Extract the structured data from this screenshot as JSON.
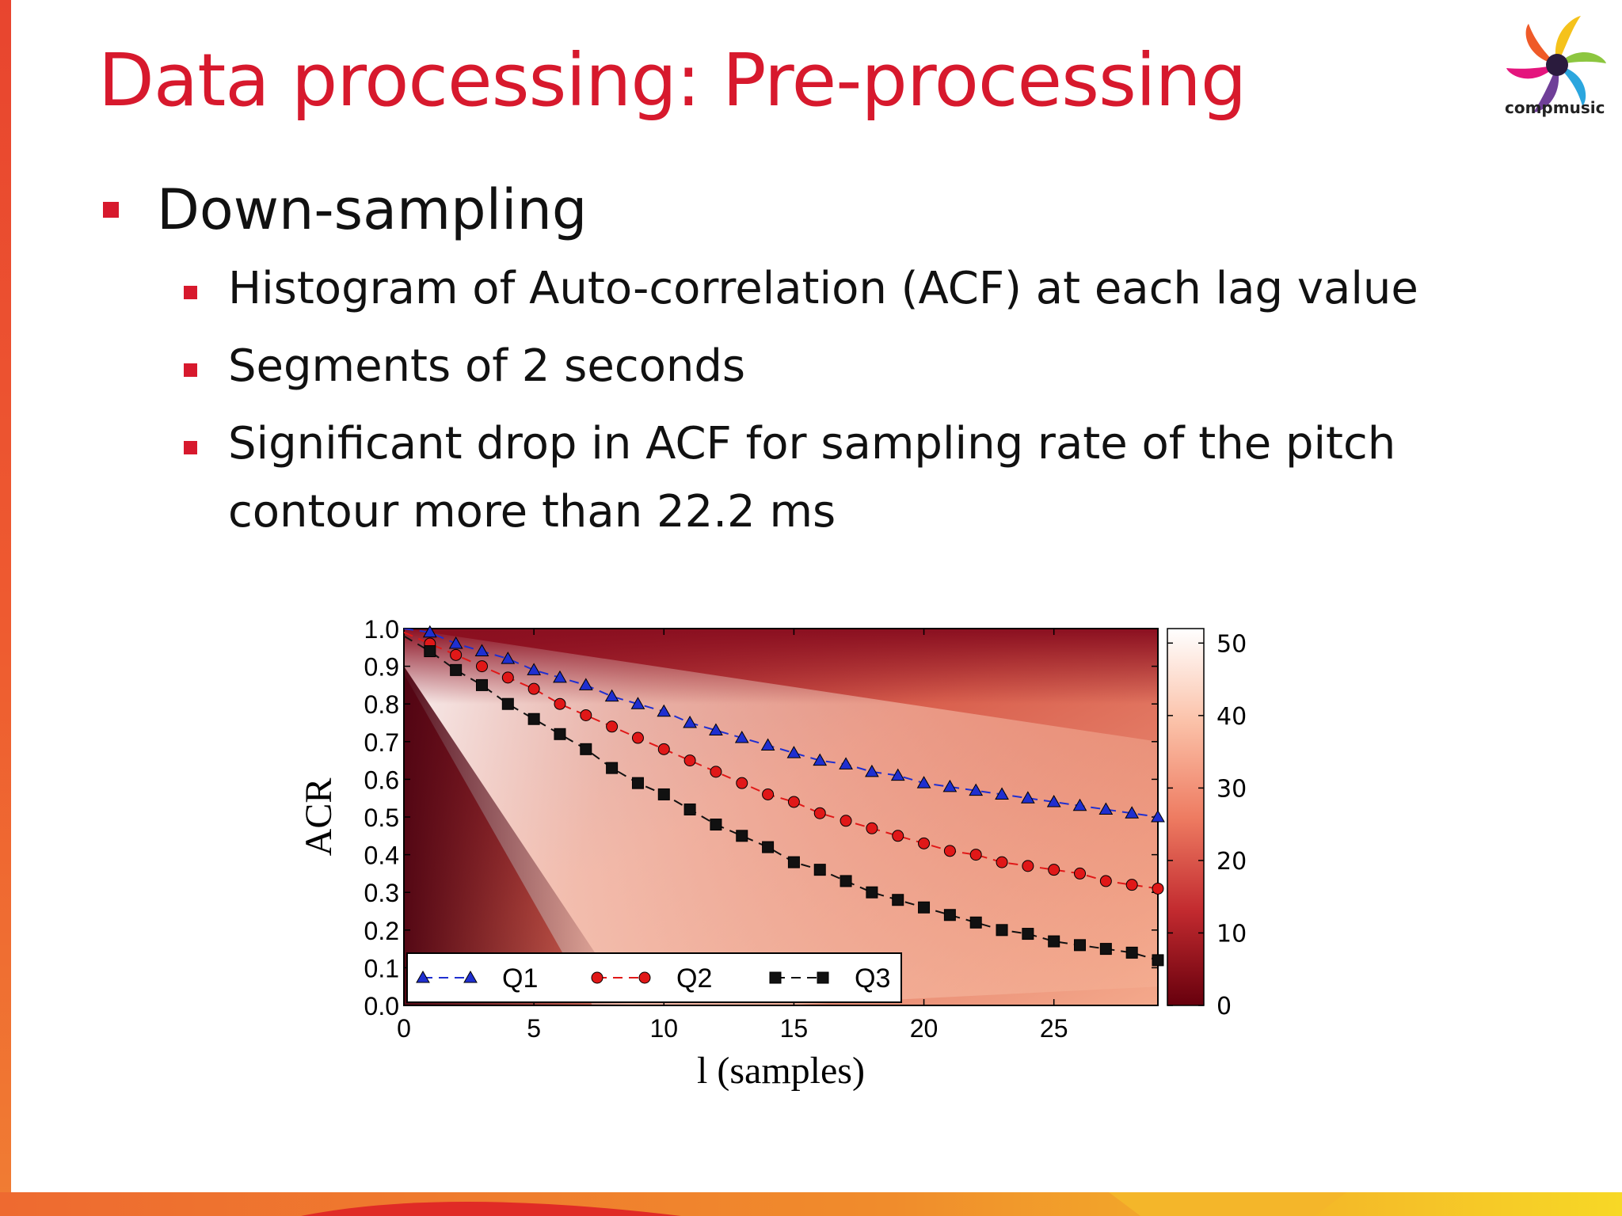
{
  "slide": {
    "title": "Data processing: Pre-processing",
    "logo_text": "compmusic",
    "bullets": [
      {
        "text": "Down-sampling",
        "level": 1
      },
      {
        "text": "Histogram of Auto-correlation (ACF) at each lag value",
        "level": 2
      },
      {
        "text": "Segments of 2 seconds",
        "level": 2
      },
      {
        "text": "Significant drop in ACF for sampling rate of the pitch",
        "level": 2
      },
      {
        "text": "contour more than 22.2 ms",
        "level": 2
      }
    ]
  },
  "colors": {
    "title": "#d7192d",
    "bullet": "#d7192d",
    "q1": "#1f2fd0",
    "q2": "#e01818",
    "q3": "#111111"
  },
  "chart_data": {
    "type": "line",
    "xlabel": "l (samples)",
    "ylabel": "ACR",
    "xlim": [
      0,
      29
    ],
    "ylim": [
      0.0,
      1.0
    ],
    "xticks": [
      0,
      5,
      10,
      15,
      20,
      25
    ],
    "yticks": [
      "0.0",
      "0.1",
      "0.2",
      "0.3",
      "0.4",
      "0.5",
      "0.6",
      "0.7",
      "0.8",
      "0.9",
      "1.0"
    ],
    "legend_position": "bottom-left",
    "x": [
      0,
      1,
      2,
      3,
      4,
      5,
      6,
      7,
      8,
      9,
      10,
      11,
      12,
      13,
      14,
      15,
      16,
      17,
      18,
      19,
      20,
      21,
      22,
      23,
      24,
      25,
      26,
      27,
      28,
      29
    ],
    "series": [
      {
        "name": "Q1",
        "marker": "triangle",
        "values": [
          1.0,
          0.99,
          0.96,
          0.94,
          0.92,
          0.89,
          0.87,
          0.85,
          0.82,
          0.8,
          0.78,
          0.75,
          0.73,
          0.71,
          0.69,
          0.67,
          0.65,
          0.64,
          0.62,
          0.61,
          0.59,
          0.58,
          0.57,
          0.56,
          0.55,
          0.54,
          0.53,
          0.52,
          0.51,
          0.5
        ]
      },
      {
        "name": "Q2",
        "marker": "circle",
        "values": [
          0.99,
          0.96,
          0.93,
          0.9,
          0.87,
          0.84,
          0.8,
          0.77,
          0.74,
          0.71,
          0.68,
          0.65,
          0.62,
          0.59,
          0.56,
          0.54,
          0.51,
          0.49,
          0.47,
          0.45,
          0.43,
          0.41,
          0.4,
          0.38,
          0.37,
          0.36,
          0.35,
          0.33,
          0.32,
          0.31
        ]
      },
      {
        "name": "Q3",
        "marker": "square",
        "values": [
          0.98,
          0.94,
          0.89,
          0.85,
          0.8,
          0.76,
          0.72,
          0.68,
          0.63,
          0.59,
          0.56,
          0.52,
          0.48,
          0.45,
          0.42,
          0.38,
          0.36,
          0.33,
          0.3,
          0.28,
          0.26,
          0.24,
          0.22,
          0.2,
          0.19,
          0.17,
          0.16,
          0.15,
          0.14,
          0.12
        ]
      }
    ],
    "heatmap": {
      "colormap": "Reds_r",
      "colorbar_min": 0,
      "colorbar_max": 52,
      "colorbar_ticks": [
        "0",
        "10",
        "20",
        "30",
        "40",
        "50"
      ]
    }
  }
}
